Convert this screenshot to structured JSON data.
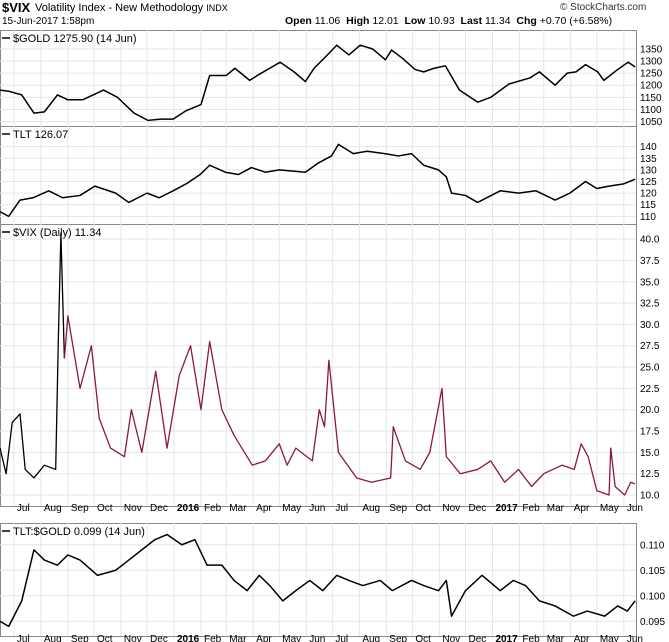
{
  "header": {
    "symbol": "$VIX",
    "description": "Volatility Index - New Methodology",
    "exchange": "INDX",
    "brand": "© StockCharts.com",
    "datetime": "15-Jun-2017 1:58pm",
    "open_label": "Open",
    "open": "11.06",
    "high_label": "High",
    "high": "12.01",
    "low_label": "Low",
    "low": "10.93",
    "last_label": "Last",
    "last": "11.34",
    "chg_label": "Chg",
    "chg": "+0.70 (+6.58%)"
  },
  "x_axis_labels": [
    "Jul",
    "Aug",
    "Sep",
    "Oct",
    "Nov",
    "Dec",
    "2016",
    "Feb",
    "Mar",
    "Apr",
    "May",
    "Jun",
    "Jul",
    "Aug",
    "Sep",
    "Oct",
    "Nov",
    "Dec",
    "2017",
    "Feb",
    "Mar",
    "Apr",
    "May",
    "Jun"
  ],
  "chart_data": [
    {
      "type": "line",
      "title": "$GOLD 1275.90 (14 Jun)",
      "color": "#000000",
      "ylim": [
        1040,
        1370
      ],
      "yticks": [
        1050,
        1100,
        1150,
        1200,
        1250,
        1300,
        1350
      ],
      "x_start": "2015-06-15",
      "x_end": "2017-06-15",
      "points": [
        [
          "2015-06-15",
          1180
        ],
        [
          "2015-06-25",
          1175
        ],
        [
          "2015-07-10",
          1160
        ],
        [
          "2015-07-24",
          1085
        ],
        [
          "2015-08-05",
          1090
        ],
        [
          "2015-08-20",
          1160
        ],
        [
          "2015-09-01",
          1140
        ],
        [
          "2015-09-18",
          1140
        ],
        [
          "2015-10-12",
          1180
        ],
        [
          "2015-10-28",
          1150
        ],
        [
          "2015-11-16",
          1085
        ],
        [
          "2015-12-02",
          1055
        ],
        [
          "2015-12-17",
          1060
        ],
        [
          "2015-12-31",
          1060
        ],
        [
          "2016-01-15",
          1095
        ],
        [
          "2016-02-01",
          1120
        ],
        [
          "2016-02-11",
          1240
        ],
        [
          "2016-03-01",
          1240
        ],
        [
          "2016-03-11",
          1270
        ],
        [
          "2016-03-28",
          1220
        ],
        [
          "2016-04-08",
          1245
        ],
        [
          "2016-04-20",
          1270
        ],
        [
          "2016-05-02",
          1295
        ],
        [
          "2016-05-18",
          1255
        ],
        [
          "2016-05-31",
          1215
        ],
        [
          "2016-06-10",
          1270
        ],
        [
          "2016-06-24",
          1320
        ],
        [
          "2016-07-06",
          1365
        ],
        [
          "2016-07-20",
          1325
        ],
        [
          "2016-08-02",
          1365
        ],
        [
          "2016-08-16",
          1350
        ],
        [
          "2016-08-31",
          1305
        ],
        [
          "2016-09-07",
          1345
        ],
        [
          "2016-09-20",
          1310
        ],
        [
          "2016-10-04",
          1265
        ],
        [
          "2016-10-14",
          1255
        ],
        [
          "2016-10-26",
          1270
        ],
        [
          "2016-11-08",
          1280
        ],
        [
          "2016-11-24",
          1180
        ],
        [
          "2016-12-15",
          1130
        ],
        [
          "2016-12-30",
          1150
        ],
        [
          "2017-01-20",
          1205
        ],
        [
          "2017-02-13",
          1230
        ],
        [
          "2017-02-24",
          1255
        ],
        [
          "2017-03-14",
          1200
        ],
        [
          "2017-03-28",
          1250
        ],
        [
          "2017-04-07",
          1255
        ],
        [
          "2017-04-18",
          1285
        ],
        [
          "2017-05-02",
          1255
        ],
        [
          "2017-05-09",
          1220
        ],
        [
          "2017-05-25",
          1265
        ],
        [
          "2017-06-06",
          1295
        ],
        [
          "2017-06-14",
          1275
        ]
      ]
    },
    {
      "type": "line",
      "title": "TLT 126.07",
      "color": "#000000",
      "ylim": [
        108,
        142
      ],
      "yticks": [
        110,
        115,
        120,
        125,
        130,
        135,
        140
      ],
      "x_start": "2015-06-15",
      "x_end": "2017-06-15",
      "points": [
        [
          "2015-06-15",
          112
        ],
        [
          "2015-06-25",
          110
        ],
        [
          "2015-07-08",
          117
        ],
        [
          "2015-07-23",
          118
        ],
        [
          "2015-08-10",
          121
        ],
        [
          "2015-08-26",
          118
        ],
        [
          "2015-09-15",
          119
        ],
        [
          "2015-10-02",
          123
        ],
        [
          "2015-10-26",
          120
        ],
        [
          "2015-11-10",
          116
        ],
        [
          "2015-12-01",
          120
        ],
        [
          "2015-12-15",
          118
        ],
        [
          "2015-12-31",
          121
        ],
        [
          "2016-01-15",
          124
        ],
        [
          "2016-01-31",
          128
        ],
        [
          "2016-02-11",
          132
        ],
        [
          "2016-02-29",
          129
        ],
        [
          "2016-03-15",
          128
        ],
        [
          "2016-03-30",
          131
        ],
        [
          "2016-04-15",
          129
        ],
        [
          "2016-05-01",
          130
        ],
        [
          "2016-05-31",
          129
        ],
        [
          "2016-06-15",
          133
        ],
        [
          "2016-06-30",
          136
        ],
        [
          "2016-07-08",
          141
        ],
        [
          "2016-07-25",
          137
        ],
        [
          "2016-08-10",
          138
        ],
        [
          "2016-08-30",
          137
        ],
        [
          "2016-09-15",
          136
        ],
        [
          "2016-09-30",
          137
        ],
        [
          "2016-10-14",
          132
        ],
        [
          "2016-10-31",
          130
        ],
        [
          "2016-11-09",
          127
        ],
        [
          "2016-11-15",
          120
        ],
        [
          "2016-12-01",
          119
        ],
        [
          "2016-12-15",
          116
        ],
        [
          "2017-01-10",
          121
        ],
        [
          "2017-01-31",
          120
        ],
        [
          "2017-02-20",
          121
        ],
        [
          "2017-03-14",
          117
        ],
        [
          "2017-03-31",
          120
        ],
        [
          "2017-04-18",
          125
        ],
        [
          "2017-05-01",
          122
        ],
        [
          "2017-05-15",
          123
        ],
        [
          "2017-06-01",
          124
        ],
        [
          "2017-06-14",
          126
        ]
      ]
    },
    {
      "type": "line",
      "title": "$VIX (Daily) 11.34",
      "color": "#8b1a3a",
      "color_early": "#000000",
      "ylim": [
        9.3,
        40.6
      ],
      "yticks": [
        10.0,
        12.5,
        15.0,
        17.5,
        20.0,
        22.5,
        25.0,
        27.5,
        30.0,
        32.5,
        35.0,
        37.5,
        40.0
      ],
      "x_start": "2015-06-15",
      "x_end": "2017-06-15",
      "points": [
        [
          "2015-06-15",
          15.5
        ],
        [
          "2015-06-22",
          12.5
        ],
        [
          "2015-06-29",
          18.5
        ],
        [
          "2015-07-08",
          19.5
        ],
        [
          "2015-07-14",
          13.0
        ],
        [
          "2015-07-24",
          12.0
        ],
        [
          "2015-08-05",
          13.5
        ],
        [
          "2015-08-18",
          13.0
        ],
        [
          "2015-08-21",
          28.0
        ],
        [
          "2015-08-24",
          40.7
        ],
        [
          "2015-08-28",
          26.0
        ],
        [
          "2015-09-01",
          31.0
        ],
        [
          "2015-09-15",
          22.5
        ],
        [
          "2015-09-28",
          27.5
        ],
        [
          "2015-10-07",
          19.0
        ],
        [
          "2015-10-20",
          15.5
        ],
        [
          "2015-11-05",
          14.5
        ],
        [
          "2015-11-13",
          20.0
        ],
        [
          "2015-11-25",
          15.0
        ],
        [
          "2015-12-11",
          24.5
        ],
        [
          "2015-12-24",
          15.5
        ],
        [
          "2016-01-07",
          24.0
        ],
        [
          "2016-01-20",
          27.5
        ],
        [
          "2016-02-01",
          20.0
        ],
        [
          "2016-02-11",
          28.0
        ],
        [
          "2016-02-25",
          20.0
        ],
        [
          "2016-03-10",
          17.0
        ],
        [
          "2016-03-31",
          13.5
        ],
        [
          "2016-04-15",
          14.0
        ],
        [
          "2016-05-01",
          16.0
        ],
        [
          "2016-05-10",
          13.5
        ],
        [
          "2016-05-20",
          15.5
        ],
        [
          "2016-06-08",
          14.0
        ],
        [
          "2016-06-16",
          20.0
        ],
        [
          "2016-06-22",
          18.0
        ],
        [
          "2016-06-27",
          25.8
        ],
        [
          "2016-07-08",
          15.0
        ],
        [
          "2016-07-29",
          12.0
        ],
        [
          "2016-08-15",
          11.5
        ],
        [
          "2016-09-06",
          12.0
        ],
        [
          "2016-09-09",
          18.0
        ],
        [
          "2016-09-23",
          14.0
        ],
        [
          "2016-10-10",
          13.0
        ],
        [
          "2016-10-21",
          15.0
        ],
        [
          "2016-11-04",
          22.5
        ],
        [
          "2016-11-09",
          14.5
        ],
        [
          "2016-11-25",
          12.5
        ],
        [
          "2016-12-15",
          13.0
        ],
        [
          "2016-12-30",
          14.0
        ],
        [
          "2017-01-15",
          11.5
        ],
        [
          "2017-01-31",
          13.0
        ],
        [
          "2017-02-15",
          11.0
        ],
        [
          "2017-03-01",
          12.5
        ],
        [
          "2017-03-22",
          13.5
        ],
        [
          "2017-04-05",
          13.0
        ],
        [
          "2017-04-13",
          16.0
        ],
        [
          "2017-04-21",
          14.5
        ],
        [
          "2017-05-01",
          10.5
        ],
        [
          "2017-05-15",
          10.0
        ],
        [
          "2017-05-17",
          15.5
        ],
        [
          "2017-05-22",
          11.0
        ],
        [
          "2017-06-02",
          10.0
        ],
        [
          "2017-06-09",
          11.5
        ],
        [
          "2017-06-14",
          11.3
        ]
      ]
    },
    {
      "type": "line",
      "title": "TLT:$GOLD 0.099 (14 Jun)",
      "color": "#000000",
      "ylim": [
        0.0925,
        0.1125
      ],
      "yticks": [
        0.095,
        0.1,
        0.105,
        0.11
      ],
      "x_start": "2015-06-15",
      "x_end": "2017-06-15",
      "points": [
        [
          "2015-06-15",
          0.095
        ],
        [
          "2015-06-25",
          0.094
        ],
        [
          "2015-07-10",
          0.099
        ],
        [
          "2015-07-24",
          0.109
        ],
        [
          "2015-08-05",
          0.107
        ],
        [
          "2015-08-20",
          0.106
        ],
        [
          "2015-09-01",
          0.108
        ],
        [
          "2015-09-15",
          0.107
        ],
        [
          "2015-10-05",
          0.104
        ],
        [
          "2015-10-26",
          0.105
        ],
        [
          "2015-11-10",
          0.107
        ],
        [
          "2015-11-25",
          0.109
        ],
        [
          "2015-12-10",
          0.111
        ],
        [
          "2015-12-24",
          0.112
        ],
        [
          "2016-01-10",
          0.11
        ],
        [
          "2016-01-25",
          0.111
        ],
        [
          "2016-02-08",
          0.106
        ],
        [
          "2016-02-25",
          0.106
        ],
        [
          "2016-03-10",
          0.103
        ],
        [
          "2016-03-25",
          0.101
        ],
        [
          "2016-04-08",
          0.104
        ],
        [
          "2016-04-20",
          0.102
        ],
        [
          "2016-05-05",
          0.099
        ],
        [
          "2016-05-20",
          0.101
        ],
        [
          "2016-06-05",
          0.103
        ],
        [
          "2016-06-20",
          0.101
        ],
        [
          "2016-07-06",
          0.104
        ],
        [
          "2016-07-20",
          0.103
        ],
        [
          "2016-08-05",
          0.102
        ],
        [
          "2016-08-25",
          0.103
        ],
        [
          "2016-09-08",
          0.101
        ],
        [
          "2016-09-30",
          0.103
        ],
        [
          "2016-10-14",
          0.102
        ],
        [
          "2016-10-31",
          0.101
        ],
        [
          "2016-11-09",
          0.103
        ],
        [
          "2016-11-15",
          0.096
        ],
        [
          "2016-12-01",
          0.101
        ],
        [
          "2016-12-20",
          0.104
        ],
        [
          "2017-01-10",
          0.101
        ],
        [
          "2017-01-25",
          0.103
        ],
        [
          "2017-02-08",
          0.102
        ],
        [
          "2017-02-24",
          0.099
        ],
        [
          "2017-03-14",
          0.098
        ],
        [
          "2017-04-04",
          0.096
        ],
        [
          "2017-04-20",
          0.097
        ],
        [
          "2017-05-10",
          0.096
        ],
        [
          "2017-05-25",
          0.098
        ],
        [
          "2017-06-05",
          0.097
        ],
        [
          "2017-06-14",
          0.099
        ]
      ]
    }
  ]
}
